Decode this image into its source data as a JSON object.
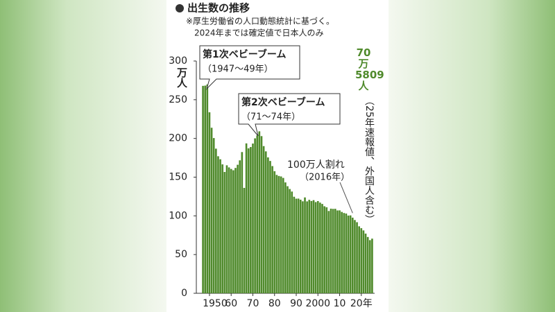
{
  "chart_data": {
    "type": "bar",
    "title": "出生数の推移",
    "notes": [
      "※厚生労働省の人口動態統計に基づく。",
      "2024年までは確定値で日本人のみ"
    ],
    "y_label": "万人",
    "color": "#4f8a2b",
    "x": [
      1947,
      1948,
      1949,
      1950,
      1951,
      1952,
      1953,
      1954,
      1955,
      1956,
      1957,
      1958,
      1959,
      1960,
      1961,
      1962,
      1963,
      1964,
      1965,
      1966,
      1967,
      1968,
      1969,
      1970,
      1971,
      1972,
      1973,
      1974,
      1975,
      1976,
      1977,
      1978,
      1979,
      1980,
      1981,
      1982,
      1983,
      1984,
      1985,
      1986,
      1987,
      1988,
      1989,
      1990,
      1991,
      1992,
      1993,
      1994,
      1995,
      1996,
      1997,
      1998,
      1999,
      2000,
      2001,
      2002,
      2003,
      2004,
      2005,
      2006,
      2007,
      2008,
      2009,
      2010,
      2011,
      2012,
      2013,
      2014,
      2015,
      2016,
      2017,
      2018,
      2019,
      2020,
      2021,
      2022,
      2023,
      2024,
      2025
    ],
    "values": [
      267.9,
      268.2,
      269.7,
      233.8,
      213.8,
      200.5,
      186.8,
      177.0,
      173.1,
      166.5,
      156.7,
      165.3,
      162.6,
      160.6,
      158.9,
      161.9,
      166.0,
      171.7,
      182.4,
      136.1,
      193.6,
      187.2,
      188.9,
      193.4,
      200.1,
      203.9,
      209.2,
      203.0,
      190.1,
      183.3,
      175.5,
      170.9,
      164.3,
      157.7,
      152.9,
      151.5,
      150.9,
      149.0,
      143.2,
      138.3,
      134.7,
      131.4,
      124.7,
      122.2,
      122.3,
      120.9,
      118.8,
      123.8,
      118.7,
      120.7,
      119.2,
      120.3,
      117.8,
      119.1,
      117.1,
      115.4,
      112.4,
      111.1,
      106.3,
      109.3,
      109.0,
      109.1,
      107.0,
      107.1,
      105.1,
      103.7,
      103.0,
      100.4,
      100.6,
      97.7,
      94.6,
      91.8,
      86.5,
      84.1,
      81.2,
      77.1,
      72.7,
      68.6,
      70.5809
    ],
    "value_labels": [
      null,
      null,
      null,
      null,
      null,
      null,
      null,
      null,
      null,
      null,
      null,
      null,
      null,
      null,
      null,
      null,
      null,
      null,
      null,
      null,
      null,
      null,
      null,
      null,
      null,
      null,
      null,
      null,
      null,
      null,
      null,
      null,
      null,
      null,
      null,
      null,
      null,
      null,
      null,
      null,
      null,
      null,
      null,
      null,
      null,
      null,
      null,
      null,
      null,
      null,
      null,
      null,
      null,
      null,
      null,
      null,
      null,
      null,
      null,
      null,
      null,
      null,
      null,
      null,
      null,
      null,
      null,
      null,
      null,
      null,
      null,
      null,
      null,
      null,
      null,
      null,
      null,
      null,
      "70万5809人"
    ],
    "value_label_note": "（25年速報値、外国人含む）",
    "annotations": [
      {
        "text": "第1次ベビーブーム",
        "detail": "（1947〜49年）"
      },
      {
        "text": "第2次ベビーブーム",
        "detail": "（71〜74年）"
      },
      {
        "text": "100万人割れ",
        "detail": "（2016年）"
      }
    ],
    "xlim": [
      1946.5,
      2025.5
    ],
    "xticks": [
      1950,
      {
        "value": 1960,
        "label": "60"
      },
      {
        "value": 1970,
        "label": "70"
      },
      {
        "value": 1980,
        "label": "80"
      },
      {
        "value": 1990,
        "label": "90"
      },
      2000,
      {
        "value": 2010,
        "label": "10"
      },
      {
        "value": 2020,
        "label": "20年"
      }
    ],
    "ylim": [
      0,
      300
    ],
    "yticks": [
      0,
      50,
      100,
      150,
      200,
      250,
      300
    ]
  }
}
